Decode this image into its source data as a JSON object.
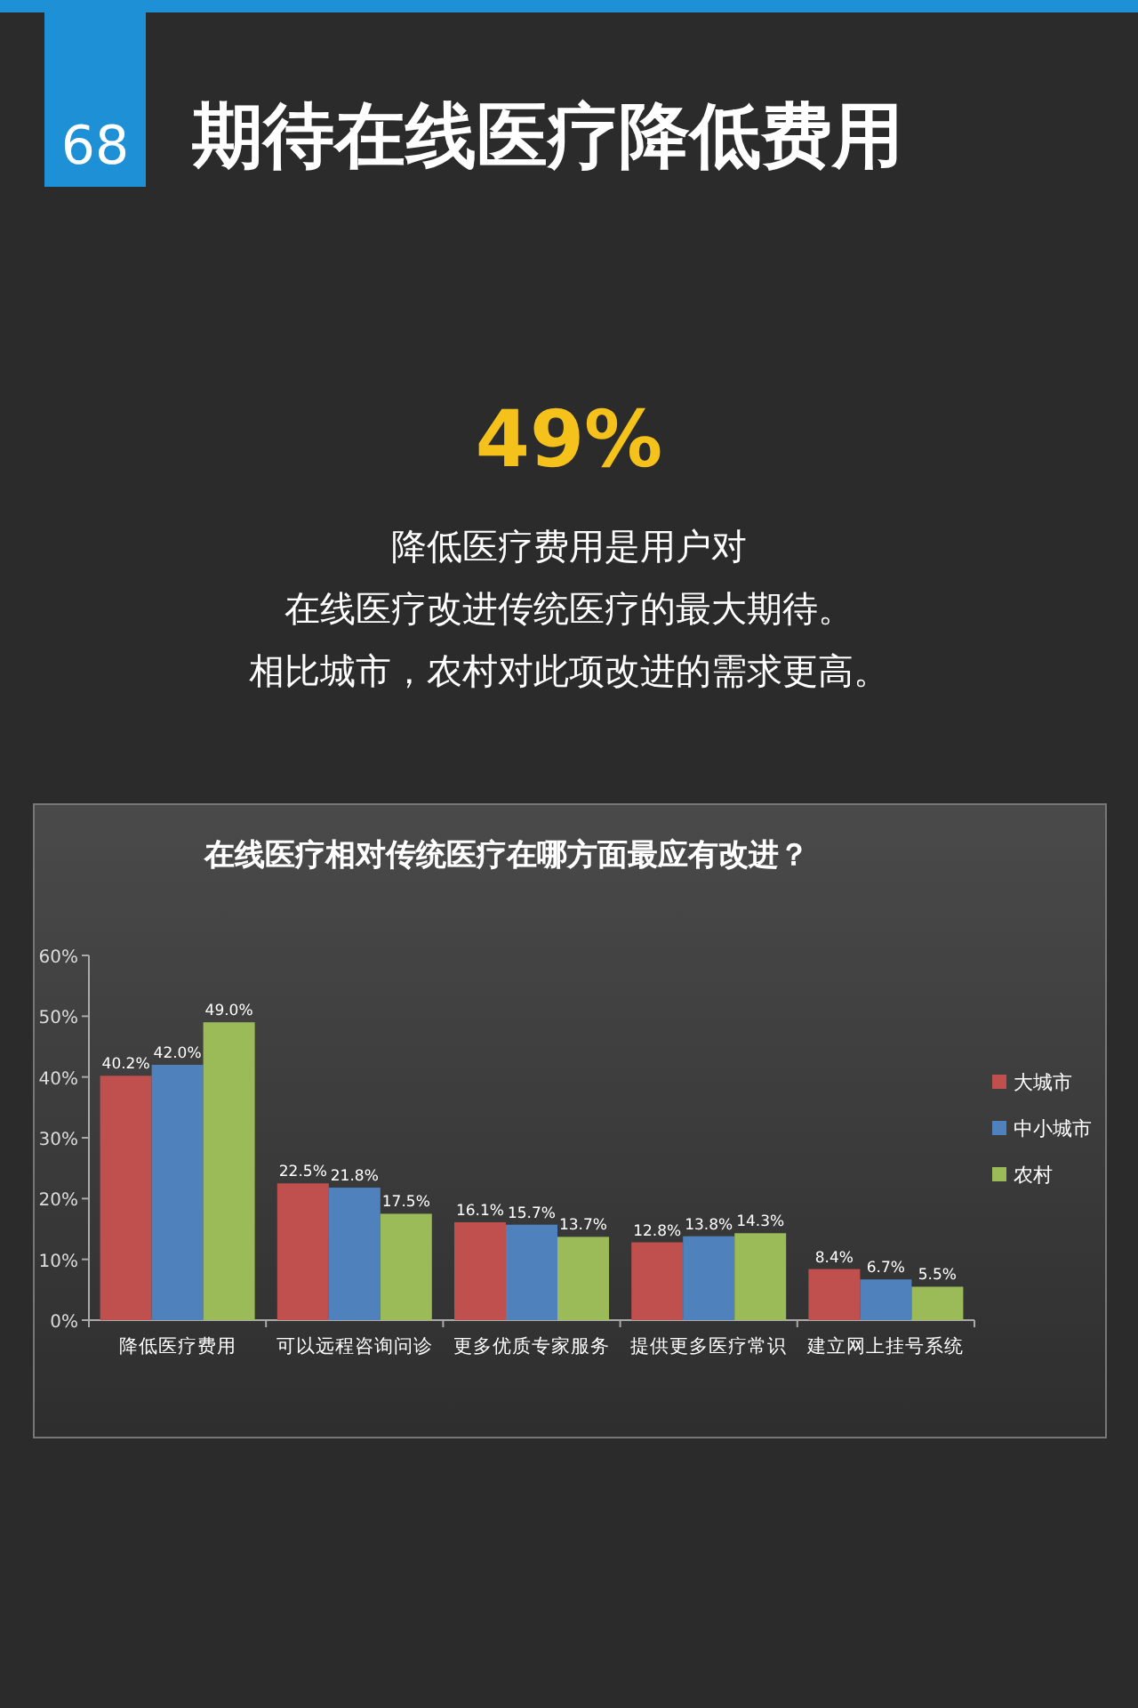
{
  "chart_data": {
    "type": "bar",
    "title": "期待在线医疗降低费用",
    "subtitle": "在线医疗相对传统医疗在哪方面最应有改进？",
    "annotations": [
      "68",
      "49%",
      "降低医疗费用是用户对",
      "在线医疗改进传统医疗的最大期待。",
      "相比城市，农村对此项改进的需求更高。"
    ],
    "categories": [
      "降低医疗费用",
      "可以远程咨询问诊",
      "更多优质专家服务",
      "提供更多医疗常识",
      "建立网上挂号系统"
    ],
    "series": [
      {
        "name": "大城市",
        "color": "#c0504d",
        "values": [
          40.2,
          22.5,
          16.1,
          12.8,
          8.4
        ],
        "value_labels": [
          "40.2%",
          "22.5%",
          "16.1%",
          "12.8%",
          "8.4%"
        ]
      },
      {
        "name": "中小城市",
        "color": "#4f81bd",
        "values": [
          42.0,
          21.8,
          15.7,
          13.8,
          6.7
        ],
        "value_labels": [
          "42.0%",
          "21.8%",
          "15.7%",
          "13.8%",
          "6.7%"
        ]
      },
      {
        "name": "农村",
        "color": "#9bbb59",
        "values": [
          49.0,
          17.5,
          13.7,
          14.3,
          5.5
        ],
        "value_labels": [
          "49.0%",
          "17.5%",
          "13.7%",
          "14.3%",
          "5.5%"
        ]
      }
    ],
    "ylim": [
      0,
      60
    ],
    "yticks": [
      {
        "value": 0,
        "label": "0%"
      },
      {
        "value": 10,
        "label": "10%"
      },
      {
        "value": 20,
        "label": "20%"
      },
      {
        "value": 30,
        "label": "30%"
      },
      {
        "value": 40,
        "label": "40%"
      },
      {
        "value": 50,
        "label": "50%"
      },
      {
        "value": 60,
        "label": "60%"
      }
    ],
    "legend": "right"
  }
}
